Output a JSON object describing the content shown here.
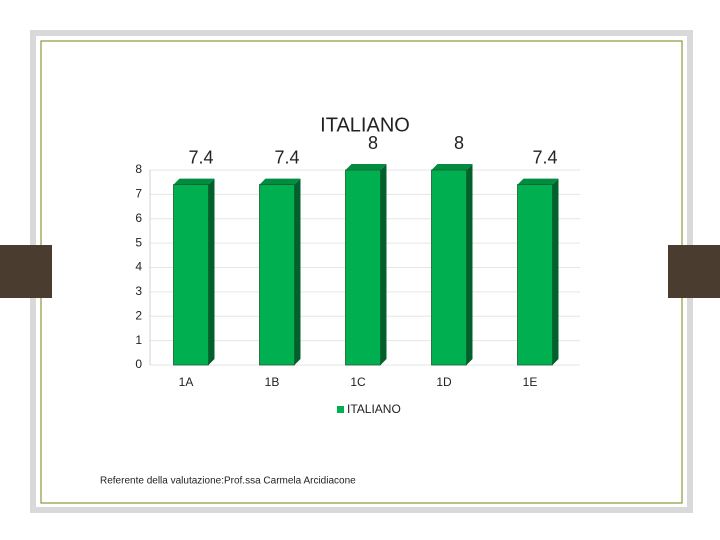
{
  "chart_data": {
    "type": "bar",
    "title": "ITALIANO",
    "categories": [
      "1A",
      "1B",
      "1C",
      "1D",
      "1E"
    ],
    "series": [
      {
        "name": "ITALIANO",
        "color": "#00b050",
        "values": [
          7.4,
          7.4,
          8,
          8,
          7.4
        ]
      }
    ],
    "ylim": [
      0,
      8
    ],
    "yticks": [
      0,
      1,
      2,
      3,
      4,
      5,
      6,
      7,
      8
    ],
    "grid": true,
    "legend": "bottom",
    "footnote": "Referente della valutazione:Prof.ssa Carmela Arcidiacone"
  }
}
